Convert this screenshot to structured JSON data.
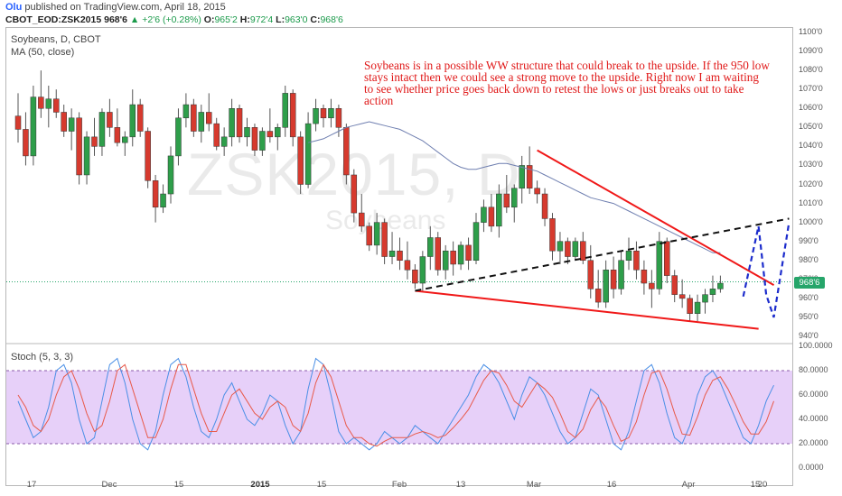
{
  "header": {
    "author": "Olu",
    "published": "published on TradingView.com, April 18, 2015",
    "symbol": "CBOT_EOD:ZSK2015",
    "last": "968'6",
    "change": "+2'6 (+0.28%)",
    "o_label": "O:",
    "o": "965'2",
    "h_label": "H:",
    "h": "972'4",
    "l_label": "L:",
    "l": "963'0",
    "c_label": "C:",
    "c": "968'6"
  },
  "legend": {
    "title": "Soybeans, D, CBOT",
    "ma": "MA (50, close)",
    "stoch": "Stoch (5, 3, 3)"
  },
  "watermark": {
    "symbol": "ZSK2015, D",
    "name": "Soybeans"
  },
  "annotation": "Soybeans is in a possible WW structure that could break to the upside. If the 950 low stays intact then we could see a strong move to the upside. Right now I am waiting to see whether price goes back down to retest the lows or just breaks out to take action",
  "price_tag": "968'6",
  "colors": {
    "up": "#2e9e4a",
    "down": "#d63a2e",
    "ma": "#6f7fb0",
    "stoch_k": "#4a8fe6",
    "stoch_d": "#e85a4a",
    "band": "#e3c8f8",
    "trend_red": "#f01818",
    "trend_black": "#111111",
    "projection": "#1c2ccc"
  },
  "y_ticks": [
    "1100'0",
    "1090'0",
    "1080'0",
    "1070'0",
    "1060'0",
    "1050'0",
    "1040'0",
    "1030'0",
    "1020'0",
    "1010'0",
    "1000'0",
    "990'0",
    "980'0",
    "970'0",
    "960'0",
    "950'0",
    "940'0"
  ],
  "stoch_ticks": [
    "100.0000",
    "80.0000",
    "60.0000",
    "40.0000",
    "20.0000",
    "0.0000"
  ],
  "x_ticks": [
    {
      "label": "17",
      "bold": false
    },
    {
      "label": "Dec",
      "bold": false
    },
    {
      "label": "15",
      "bold": false
    },
    {
      "label": "2015",
      "bold": true
    },
    {
      "label": "15",
      "bold": false
    },
    {
      "label": "Feb",
      "bold": false
    },
    {
      "label": "13",
      "bold": false
    },
    {
      "label": "Mar",
      "bold": false
    },
    {
      "label": "16",
      "bold": false
    },
    {
      "label": "Apr",
      "bold": false
    },
    {
      "label": "15",
      "bold": false
    },
    {
      "label": "20",
      "bold": false
    }
  ],
  "chart_data": {
    "type": "candlestick",
    "title": "Soybeans, D, CBOT",
    "ylim": [
      935,
      1100
    ],
    "candles": [
      [
        1056,
        1068,
        1042,
        1049
      ],
      [
        1049,
        1058,
        1030,
        1035
      ],
      [
        1035,
        1072,
        1030,
        1066
      ],
      [
        1066,
        1080,
        1055,
        1060
      ],
      [
        1060,
        1072,
        1050,
        1065
      ],
      [
        1065,
        1070,
        1055,
        1058
      ],
      [
        1058,
        1062,
        1045,
        1048
      ],
      [
        1048,
        1060,
        1038,
        1055
      ],
      [
        1055,
        1058,
        1020,
        1025
      ],
      [
        1025,
        1048,
        1020,
        1045
      ],
      [
        1045,
        1055,
        1035,
        1040
      ],
      [
        1040,
        1060,
        1035,
        1058
      ],
      [
        1058,
        1065,
        1045,
        1050
      ],
      [
        1050,
        1060,
        1040,
        1042
      ],
      [
        1042,
        1048,
        1035,
        1045
      ],
      [
        1045,
        1070,
        1040,
        1062
      ],
      [
        1062,
        1065,
        1045,
        1048
      ],
      [
        1048,
        1050,
        1018,
        1022
      ],
      [
        1022,
        1025,
        1000,
        1008
      ],
      [
        1008,
        1020,
        1005,
        1015
      ],
      [
        1015,
        1040,
        1010,
        1035
      ],
      [
        1035,
        1060,
        1030,
        1055
      ],
      [
        1055,
        1068,
        1050,
        1062
      ],
      [
        1062,
        1065,
        1045,
        1048
      ],
      [
        1048,
        1062,
        1042,
        1058
      ],
      [
        1058,
        1068,
        1048,
        1052
      ],
      [
        1052,
        1055,
        1038,
        1040
      ],
      [
        1040,
        1050,
        1035,
        1045
      ],
      [
        1045,
        1065,
        1040,
        1060
      ],
      [
        1060,
        1062,
        1042,
        1045
      ],
      [
        1045,
        1055,
        1040,
        1050
      ],
      [
        1050,
        1052,
        1035,
        1038
      ],
      [
        1038,
        1050,
        1035,
        1048
      ],
      [
        1048,
        1060,
        1042,
        1045
      ],
      [
        1045,
        1052,
        1038,
        1050
      ],
      [
        1050,
        1072,
        1045,
        1068
      ],
      [
        1068,
        1070,
        1040,
        1045
      ],
      [
        1045,
        1048,
        1015,
        1020
      ],
      [
        1020,
        1058,
        1018,
        1052
      ],
      [
        1052,
        1065,
        1048,
        1060
      ],
      [
        1060,
        1062,
        1050,
        1055
      ],
      [
        1055,
        1065,
        1050,
        1060
      ],
      [
        1060,
        1062,
        1045,
        1050
      ],
      [
        1050,
        1052,
        1020,
        1025
      ],
      [
        1025,
        1028,
        1000,
        1005
      ],
      [
        1005,
        1015,
        995,
        998
      ],
      [
        998,
        1000,
        985,
        988
      ],
      [
        988,
        1005,
        983,
        1000
      ],
      [
        1000,
        1002,
        978,
        982
      ],
      [
        982,
        995,
        978,
        985
      ],
      [
        985,
        992,
        975,
        980
      ],
      [
        980,
        990,
        970,
        975
      ],
      [
        975,
        978,
        965,
        968
      ],
      [
        968,
        985,
        964,
        982
      ],
      [
        982,
        998,
        975,
        992
      ],
      [
        992,
        995,
        972,
        975
      ],
      [
        975,
        988,
        970,
        985
      ],
      [
        985,
        990,
        972,
        978
      ],
      [
        978,
        990,
        975,
        988
      ],
      [
        988,
        992,
        975,
        980
      ],
      [
        980,
        1005,
        978,
        1000
      ],
      [
        1000,
        1012,
        995,
        1008
      ],
      [
        1008,
        1015,
        995,
        998
      ],
      [
        998,
        1020,
        992,
        1015
      ],
      [
        1015,
        1025,
        1005,
        1008
      ],
      [
        1008,
        1020,
        1000,
        1018
      ],
      [
        1018,
        1035,
        1010,
        1030
      ],
      [
        1030,
        1040,
        1015,
        1018
      ],
      [
        1018,
        1022,
        1010,
        1015
      ],
      [
        1015,
        1018,
        998,
        1002
      ],
      [
        1002,
        1005,
        980,
        985
      ],
      [
        985,
        995,
        978,
        990
      ],
      [
        990,
        992,
        978,
        982
      ],
      [
        982,
        992,
        980,
        990
      ],
      [
        990,
        995,
        978,
        980
      ],
      [
        980,
        988,
        960,
        965
      ],
      [
        965,
        975,
        955,
        958
      ],
      [
        958,
        980,
        955,
        975
      ],
      [
        975,
        982,
        960,
        965
      ],
      [
        965,
        985,
        962,
        980
      ],
      [
        980,
        992,
        975,
        985
      ],
      [
        985,
        990,
        970,
        975
      ],
      [
        975,
        980,
        962,
        968
      ],
      [
        968,
        975,
        955,
        965
      ],
      [
        965,
        995,
        962,
        990
      ],
      [
        990,
        992,
        968,
        972
      ],
      [
        972,
        975,
        958,
        962
      ],
      [
        962,
        970,
        955,
        960
      ],
      [
        960,
        962,
        948,
        952
      ],
      [
        952,
        962,
        948,
        958
      ],
      [
        958,
        965,
        952,
        962
      ],
      [
        962,
        972,
        958,
        965
      ],
      [
        965,
        972,
        963,
        968
      ]
    ],
    "ma50": [
      1042,
      1043,
      1044,
      1046,
      1048,
      1050,
      1051,
      1052,
      1053,
      1052,
      1051,
      1050,
      1049,
      1047,
      1045,
      1043,
      1040,
      1037,
      1034,
      1031,
      1029,
      1028,
      1028,
      1029,
      1030,
      1031,
      1031,
      1030,
      1029,
      1028,
      1027,
      1025,
      1023,
      1021,
      1019,
      1017,
      1015,
      1013,
      1012,
      1011,
      1010,
      1008,
      1006,
      1004,
      1002,
      1000,
      998,
      996,
      994,
      992,
      990,
      988,
      986,
      984,
      984
    ],
    "trendlines": [
      {
        "color": "red",
        "from": {
          "bar": 52,
          "price": 964
        },
        "to": {
          "bar": 97,
          "price": 944
        }
      },
      {
        "color": "red",
        "from": {
          "bar": 68,
          "price": 1038
        },
        "to": {
          "bar": 99,
          "price": 967
        }
      },
      {
        "color": "black",
        "style": "dashed",
        "from": {
          "bar": 52,
          "price": 964
        },
        "to": {
          "bar": 101,
          "price": 1002
        }
      }
    ],
    "projection": [
      {
        "bar": 95,
        "price": 961
      },
      {
        "bar": 97,
        "price": 998
      },
      {
        "bar": 98,
        "price": 962
      },
      {
        "bar": 99,
        "price": 950
      },
      {
        "bar": 101,
        "price": 1000
      }
    ],
    "stochastic": {
      "k": [
        55,
        40,
        25,
        30,
        50,
        80,
        85,
        70,
        40,
        20,
        25,
        55,
        85,
        90,
        70,
        40,
        20,
        15,
        30,
        60,
        85,
        90,
        75,
        50,
        30,
        25,
        40,
        60,
        70,
        55,
        40,
        35,
        45,
        60,
        55,
        35,
        20,
        30,
        65,
        90,
        85,
        60,
        30,
        20,
        25,
        20,
        15,
        20,
        30,
        25,
        20,
        25,
        35,
        30,
        25,
        20,
        30,
        40,
        50,
        60,
        75,
        85,
        80,
        70,
        55,
        40,
        60,
        75,
        70,
        60,
        45,
        30,
        20,
        25,
        45,
        65,
        60,
        40,
        20,
        15,
        30,
        55,
        80,
        85,
        70,
        45,
        25,
        20,
        35,
        60,
        75,
        80,
        70,
        55,
        40,
        25,
        20,
        35,
        55,
        68
      ],
      "d": [
        60,
        50,
        35,
        30,
        40,
        60,
        75,
        80,
        65,
        45,
        30,
        35,
        55,
        80,
        85,
        65,
        45,
        25,
        25,
        40,
        65,
        85,
        85,
        65,
        45,
        30,
        30,
        45,
        60,
        65,
        55,
        45,
        40,
        50,
        55,
        50,
        35,
        30,
        45,
        70,
        85,
        75,
        55,
        35,
        25,
        25,
        20,
        18,
        22,
        25,
        25,
        25,
        28,
        30,
        28,
        25,
        27,
        33,
        40,
        48,
        60,
        72,
        80,
        78,
        68,
        55,
        50,
        60,
        70,
        65,
        58,
        45,
        30,
        25,
        32,
        48,
        58,
        50,
        35,
        22,
        25,
        38,
        60,
        78,
        80,
        65,
        45,
        28,
        27,
        42,
        60,
        72,
        75,
        65,
        52,
        38,
        28,
        28,
        38,
        55
      ]
    }
  }
}
